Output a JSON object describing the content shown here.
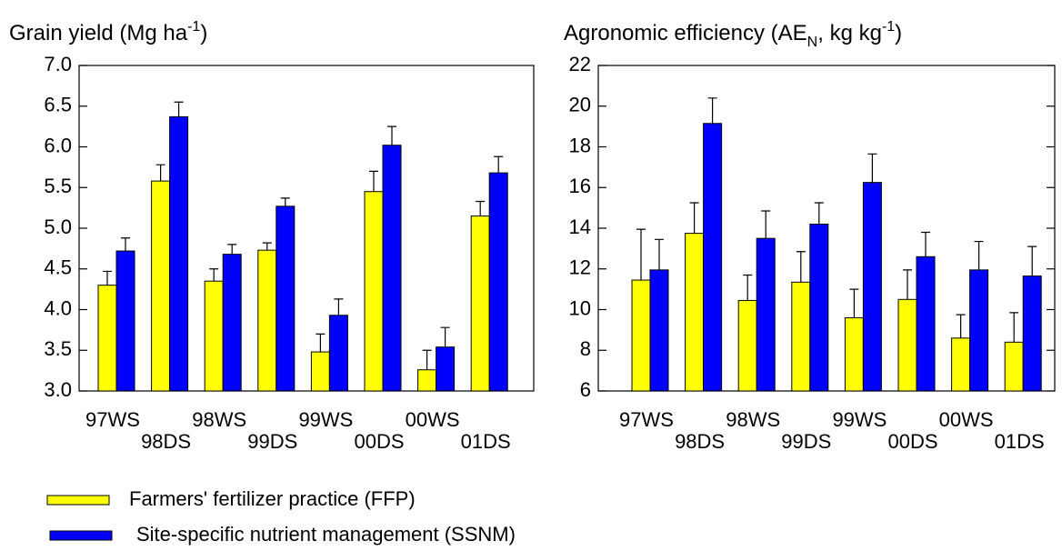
{
  "chart_data": [
    {
      "type": "bar",
      "title": [
        {
          "text": "Grain yield (Mg ha"
        },
        {
          "text": "-1",
          "script": "sup"
        },
        {
          "text": ")"
        }
      ],
      "categories": [
        "97WS",
        "98DS",
        "98WS",
        "99DS",
        "99WS",
        "00DS",
        "00WS",
        "01DS"
      ],
      "series": [
        {
          "name": "Farmers' fertilizer practice (FFP)",
          "color": "#ffff00",
          "values": [
            4.3,
            5.58,
            4.35,
            4.73,
            3.48,
            5.45,
            3.26,
            5.15
          ],
          "errors": [
            0.17,
            0.2,
            0.15,
            0.09,
            0.22,
            0.25,
            0.24,
            0.18
          ]
        },
        {
          "name": "Site-specific nutrient management (SSNM)",
          "color": "#0000ff",
          "values": [
            4.72,
            6.37,
            4.68,
            5.27,
            3.93,
            6.02,
            3.54,
            5.68
          ],
          "errors": [
            0.16,
            0.18,
            0.12,
            0.1,
            0.2,
            0.23,
            0.24,
            0.2
          ]
        }
      ],
      "ylim": [
        3,
        7
      ],
      "yticks": [
        {
          "value": 3,
          "label": "3.0"
        },
        3.5,
        {
          "value": 4,
          "label": "4.0"
        },
        4.5,
        {
          "value": 5,
          "label": "5.0"
        },
        5.5,
        {
          "value": 6,
          "label": "6.0"
        },
        6.5,
        {
          "value": 7,
          "label": "7.0"
        }
      ],
      "mirror_ticks": false
    },
    {
      "type": "bar",
      "title": [
        {
          "text": "Agronomic efficiency (AE"
        },
        {
          "text": "N",
          "script": "sub"
        },
        {
          "text": ", kg kg"
        },
        {
          "text": "-1",
          "script": "sup"
        },
        {
          "text": ")"
        }
      ],
      "categories": [
        "97WS",
        "98DS",
        "98WS",
        "99DS",
        "99WS",
        "00DS",
        "00WS",
        "01DS"
      ],
      "series": [
        {
          "color": "#ffff00",
          "values": [
            11.45,
            13.75,
            10.45,
            11.35,
            9.6,
            10.5,
            8.6,
            8.4
          ],
          "errors": [
            2.5,
            1.5,
            1.25,
            1.5,
            1.4,
            1.45,
            1.15,
            1.45
          ]
        },
        {
          "color": "#0000ff",
          "values": [
            11.95,
            19.15,
            13.5,
            14.2,
            16.25,
            12.6,
            11.95,
            11.65
          ],
          "errors": [
            1.5,
            1.25,
            1.35,
            1.05,
            1.4,
            1.2,
            1.4,
            1.45
          ]
        }
      ],
      "ylim": [
        6,
        22
      ],
      "yticks": [
        6,
        8,
        10,
        12,
        14,
        16,
        18,
        20,
        22
      ],
      "mirror_ticks": true
    }
  ]
}
